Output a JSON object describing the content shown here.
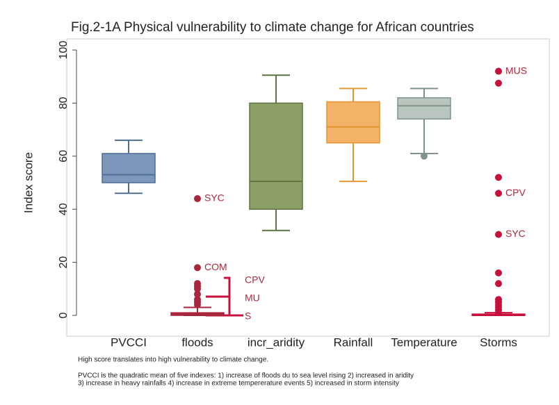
{
  "chart_data": {
    "type": "box",
    "title": "Fig.2-1A  Physical vulnerability to climate change  for African countries",
    "ylabel": "Index score",
    "ylim": [
      0,
      100
    ],
    "yticks": [
      0,
      20,
      40,
      60,
      80,
      100
    ],
    "boxes": [
      {
        "name": "PVCCI",
        "color": "#7d97ba",
        "edge": "#4d6d93",
        "whisker_low": 46,
        "q1": 50,
        "median": 53,
        "q3": 61,
        "whisker_high": 66,
        "outliers": [],
        "outlier_labels": []
      },
      {
        "name": "floods",
        "color": "#a8263c",
        "edge": "#a8263c",
        "whisker_low": 0,
        "q1": 0,
        "median": 0.5,
        "q3": 1,
        "whisker_high": 3,
        "outliers": [
          44,
          18,
          12,
          11,
          10,
          8,
          6,
          5,
          4
        ],
        "outlier_labels": [
          "SYC",
          "COM",
          null,
          null,
          null,
          null,
          null,
          null,
          null
        ]
      },
      {
        "name": "incr_aridity",
        "color": "#8c9f66",
        "edge": "#5e7342",
        "whisker_low": 32,
        "q1": 40,
        "median": 50.5,
        "q3": 80,
        "whisker_high": 90.5,
        "outliers": [],
        "outlier_labels": []
      },
      {
        "name": "Rainfall",
        "color": "#f4b266",
        "edge": "#e39530",
        "whisker_low": 50.5,
        "q1": 65,
        "median": 71,
        "q3": 80.5,
        "whisker_high": 85.5,
        "outliers": [],
        "outlier_labels": []
      },
      {
        "name": "Temperature",
        "color": "#b9c5be",
        "edge": "#7f9388",
        "whisker_low": 61,
        "q1": 74,
        "median": 79,
        "q3": 82,
        "whisker_high": 85.5,
        "outliers": [
          60
        ],
        "outlier_labels": [
          null
        ]
      },
      {
        "name": "Storms",
        "color": "#c8103c",
        "edge": "#c8103c",
        "whisker_low": 0,
        "q1": 0,
        "median": 0,
        "q3": 0.5,
        "whisker_high": 1,
        "outliers": [
          92,
          87.5,
          52,
          46,
          30.5,
          16,
          12,
          6,
          5,
          4,
          3,
          2,
          1
        ],
        "outlier_labels": [
          "MUS",
          null,
          null,
          "CPV",
          "SYC",
          null,
          null,
          null,
          null,
          null,
          null,
          null,
          null
        ]
      }
    ],
    "bracket_labels": [
      "CPV",
      "MU",
      "S"
    ],
    "notes": [
      "High score translates into high vulnerability to climate change.",
      "PVCCI is the quadratic mean of five indexes: 1) increase of floods du to sea level rising 2) increased in aridity",
      "3) increase in heavy rainfalls 4) increase in extreme tempererature events 5) increased in storm intensity"
    ]
  }
}
